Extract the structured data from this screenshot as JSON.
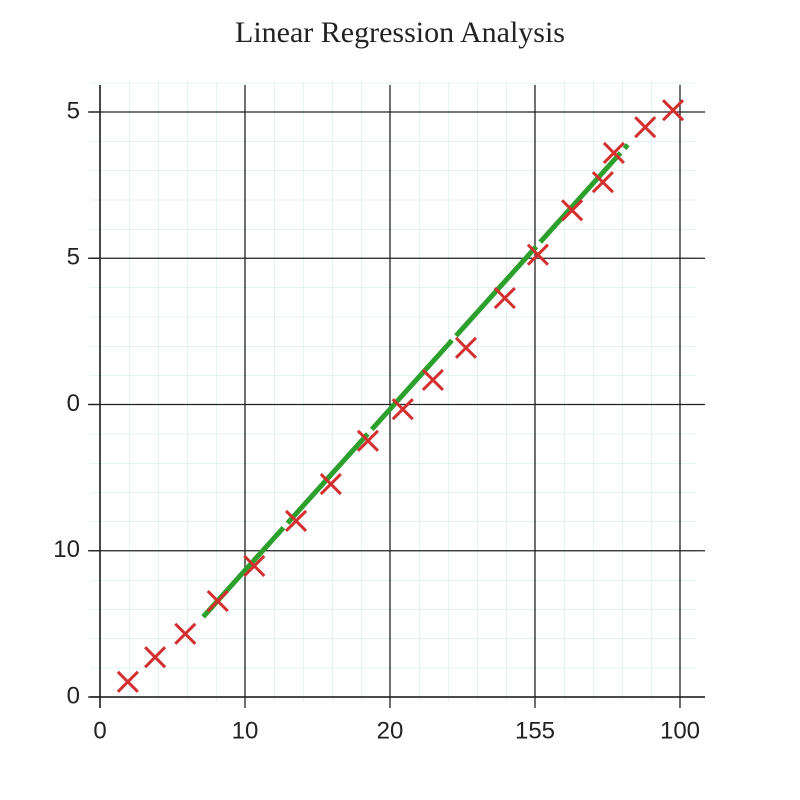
{
  "chart_data": {
    "type": "scatter",
    "title": "Linear Regression Analysis",
    "x": [
      4.8,
      9.5,
      14.7,
      20.3,
      26.6,
      33.8,
      39.8,
      46.2,
      52.2,
      57.4,
      63.1,
      69.8,
      75.5,
      81.4,
      86.7,
      88.6,
      94.0,
      98.8
    ],
    "series": [
      {
        "color": "#d32f2f",
        "values": [
          2.6,
          6.8,
          10.8,
          16.4,
          22.4,
          30.1,
          36.4,
          43.8,
          49.2,
          54.2,
          59.7,
          68.2,
          75.6,
          83.2,
          88.0,
          93.0,
          97.4,
          100.3
        ]
      }
    ],
    "fit_line": {
      "color": "#2ca02c",
      "x": [
        17.8,
        91.0
      ],
      "y": [
        13.7,
        94.4
      ]
    },
    "xlim": [
      0,
      100
    ],
    "ylim": [
      0,
      100
    ],
    "xticks": [
      0,
      {
        "value": 25,
        "label": "10"
      },
      {
        "value": 50,
        "label": "20"
      },
      {
        "value": 75,
        "label": "155"
      },
      100
    ],
    "yticks": [
      0,
      {
        "value": 25,
        "label": "10"
      },
      {
        "value": 50,
        "label": "0"
      },
      {
        "value": 75,
        "label": "5"
      },
      {
        "value": 100,
        "label": "5"
      }
    ],
    "grid": true
  }
}
